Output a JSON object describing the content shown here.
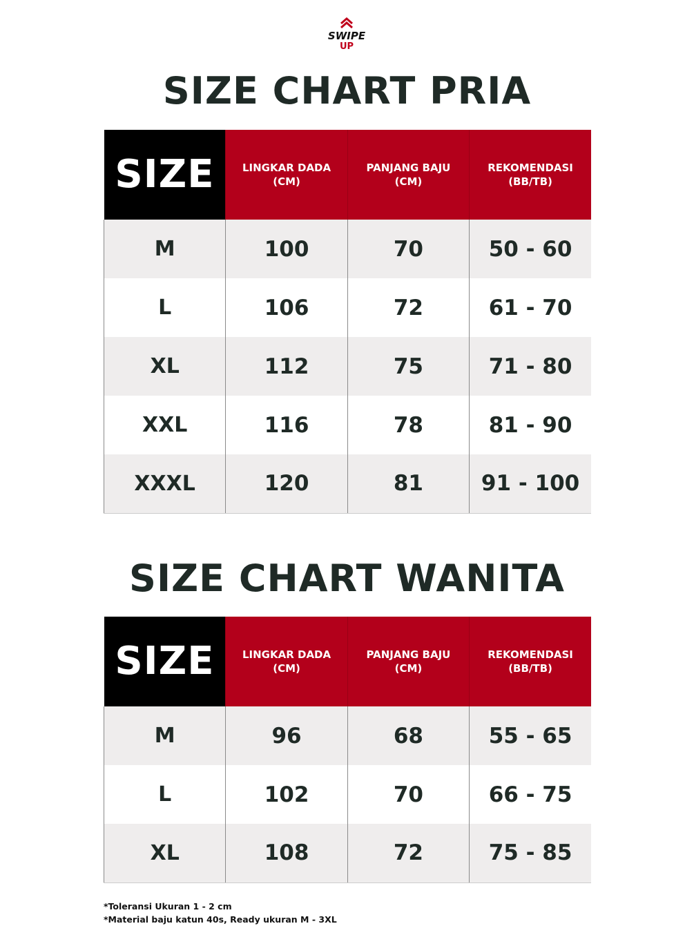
{
  "logo_text": "SWIPE UP",
  "colors": {
    "accent_red": "#b3001b",
    "header_black": "#000000",
    "text_dark": "#1f2a26",
    "row_gray": "#efeded"
  },
  "headers": {
    "size": "SIZE",
    "chest": "LINGKAR DADA",
    "chest_unit": "(CM)",
    "length": "PANJANG BAJU",
    "length_unit": "(CM)",
    "rec": "REKOMENDASI",
    "rec_unit": "(BB/TB)"
  },
  "pria": {
    "title": "SIZE CHART PRIA",
    "rows": [
      [
        "M",
        "100",
        "70",
        "50 - 60"
      ],
      [
        "L",
        "106",
        "72",
        "61 - 70"
      ],
      [
        "XL",
        "112",
        "75",
        "71 - 80"
      ],
      [
        "XXL",
        "116",
        "78",
        "81 - 90"
      ],
      [
        "XXXL",
        "120",
        "81",
        "91 - 100"
      ]
    ]
  },
  "wanita": {
    "title": "SIZE CHART WANITA",
    "rows": [
      [
        "M",
        "96",
        "68",
        "55 - 65"
      ],
      [
        "L",
        "102",
        "70",
        "66 - 75"
      ],
      [
        "XL",
        "108",
        "72",
        "75 - 85"
      ]
    ]
  },
  "notes": [
    "*Toleransi Ukuran 1 - 2 cm",
    "*Material baju katun 40s, Ready ukuran M - 3XL"
  ]
}
